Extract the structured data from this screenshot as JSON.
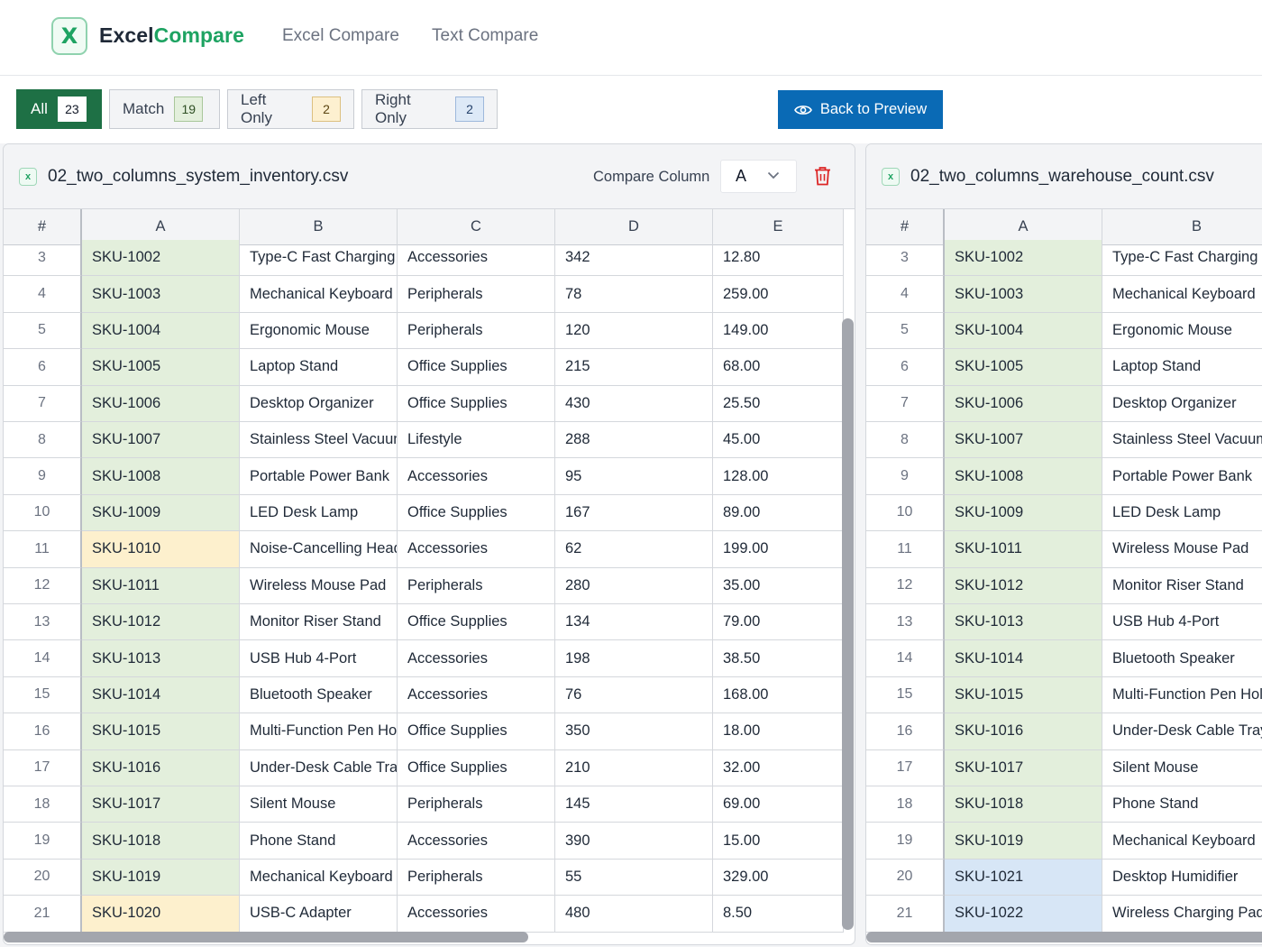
{
  "header": {
    "logo_letter": "X",
    "brand_part1": "Excel",
    "brand_part2": "Compare",
    "nav": [
      "Excel Compare",
      "Text Compare"
    ]
  },
  "filters": {
    "all_label": "All",
    "all_count": "23",
    "match_label": "Match",
    "match_count": "19",
    "left_label": "Left Only",
    "left_count": "2",
    "right_label": "Right Only",
    "right_count": "2",
    "back_label": "Back to Preview"
  },
  "colors": {
    "brand_green": "#1ea362",
    "active_filter": "#1e7045",
    "primary_button": "#0a6ab5",
    "match_bg": "#e3efdc",
    "left_only_bg": "#fdf0cd",
    "right_only_bg": "#d7e6f6",
    "delete_icon": "#dc2626"
  },
  "left_panel": {
    "file_icon": "excel-file-icon",
    "file_name": "02_two_columns_system_inventory.csv",
    "compare_label": "Compare Column",
    "compare_value": "A",
    "columns": [
      "#",
      "A",
      "B",
      "C",
      "D",
      "E"
    ],
    "rows": [
      {
        "n": "3",
        "status": "match",
        "cells": [
          "SKU-1002",
          "Type-C Fast Charging",
          "Accessories",
          "342",
          "12.80"
        ]
      },
      {
        "n": "4",
        "status": "match",
        "cells": [
          "SKU-1003",
          "Mechanical Keyboard",
          "Peripherals",
          "78",
          "259.00"
        ]
      },
      {
        "n": "5",
        "status": "match",
        "cells": [
          "SKU-1004",
          "Ergonomic Mouse",
          "Peripherals",
          "120",
          "149.00"
        ]
      },
      {
        "n": "6",
        "status": "match",
        "cells": [
          "SKU-1005",
          "Laptop Stand",
          "Office Supplies",
          "215",
          "68.00"
        ]
      },
      {
        "n": "7",
        "status": "match",
        "cells": [
          "SKU-1006",
          "Desktop Organizer",
          "Office Supplies",
          "430",
          "25.50"
        ]
      },
      {
        "n": "8",
        "status": "match",
        "cells": [
          "SKU-1007",
          "Stainless Steel Vacuum",
          "Lifestyle",
          "288",
          "45.00"
        ]
      },
      {
        "n": "9",
        "status": "match",
        "cells": [
          "SKU-1008",
          "Portable Power Bank",
          "Accessories",
          "95",
          "128.00"
        ]
      },
      {
        "n": "10",
        "status": "match",
        "cells": [
          "SKU-1009",
          "LED Desk Lamp",
          "Office Supplies",
          "167",
          "89.00"
        ]
      },
      {
        "n": "11",
        "status": "leftonly",
        "cells": [
          "SKU-1010",
          "Noise-Cancelling Headphones",
          "Accessories",
          "62",
          "199.00"
        ]
      },
      {
        "n": "12",
        "status": "match",
        "cells": [
          "SKU-1011",
          "Wireless Mouse Pad",
          "Peripherals",
          "280",
          "35.00"
        ]
      },
      {
        "n": "13",
        "status": "match",
        "cells": [
          "SKU-1012",
          "Monitor Riser Stand",
          "Office Supplies",
          "134",
          "79.00"
        ]
      },
      {
        "n": "14",
        "status": "match",
        "cells": [
          "SKU-1013",
          "USB Hub 4-Port",
          "Accessories",
          "198",
          "38.50"
        ]
      },
      {
        "n": "15",
        "status": "match",
        "cells": [
          "SKU-1014",
          "Bluetooth Speaker",
          "Accessories",
          "76",
          "168.00"
        ]
      },
      {
        "n": "16",
        "status": "match",
        "cells": [
          "SKU-1015",
          "Multi-Function Pen Holder",
          "Office Supplies",
          "350",
          "18.00"
        ]
      },
      {
        "n": "17",
        "status": "match",
        "cells": [
          "SKU-1016",
          "Under-Desk Cable Tray",
          "Office Supplies",
          "210",
          "32.00"
        ]
      },
      {
        "n": "18",
        "status": "match",
        "cells": [
          "SKU-1017",
          "Silent Mouse",
          "Peripherals",
          "145",
          "69.00"
        ]
      },
      {
        "n": "19",
        "status": "match",
        "cells": [
          "SKU-1018",
          "Phone Stand",
          "Accessories",
          "390",
          "15.00"
        ]
      },
      {
        "n": "20",
        "status": "match",
        "cells": [
          "SKU-1019",
          "Mechanical Keyboard",
          "Peripherals",
          "55",
          "329.00"
        ]
      },
      {
        "n": "21",
        "status": "leftonly",
        "cells": [
          "SKU-1020",
          "USB-C Adapter",
          "Accessories",
          "480",
          "8.50"
        ]
      }
    ]
  },
  "right_panel": {
    "file_icon": "excel-file-icon",
    "file_name": "02_two_columns_warehouse_count.csv",
    "columns": [
      "#",
      "A",
      "B"
    ],
    "rows": [
      {
        "n": "3",
        "status": "match",
        "cells": [
          "SKU-1002",
          "Type-C Fast Charging"
        ]
      },
      {
        "n": "4",
        "status": "match",
        "cells": [
          "SKU-1003",
          "Mechanical Keyboard"
        ]
      },
      {
        "n": "5",
        "status": "match",
        "cells": [
          "SKU-1004",
          "Ergonomic Mouse"
        ]
      },
      {
        "n": "6",
        "status": "match",
        "cells": [
          "SKU-1005",
          "Laptop Stand"
        ]
      },
      {
        "n": "7",
        "status": "match",
        "cells": [
          "SKU-1006",
          "Desktop Organizer"
        ]
      },
      {
        "n": "8",
        "status": "match",
        "cells": [
          "SKU-1007",
          "Stainless Steel Vacuum"
        ]
      },
      {
        "n": "9",
        "status": "match",
        "cells": [
          "SKU-1008",
          "Portable Power Bank"
        ]
      },
      {
        "n": "10",
        "status": "match",
        "cells": [
          "SKU-1009",
          "LED Desk Lamp"
        ]
      },
      {
        "n": "11",
        "status": "match",
        "cells": [
          "SKU-1011",
          "Wireless Mouse Pad"
        ]
      },
      {
        "n": "12",
        "status": "match",
        "cells": [
          "SKU-1012",
          "Monitor Riser Stand"
        ]
      },
      {
        "n": "13",
        "status": "match",
        "cells": [
          "SKU-1013",
          "USB Hub 4-Port"
        ]
      },
      {
        "n": "14",
        "status": "match",
        "cells": [
          "SKU-1014",
          "Bluetooth Speaker"
        ]
      },
      {
        "n": "15",
        "status": "match",
        "cells": [
          "SKU-1015",
          "Multi-Function Pen Holder"
        ]
      },
      {
        "n": "16",
        "status": "match",
        "cells": [
          "SKU-1016",
          "Under-Desk Cable Tray"
        ]
      },
      {
        "n": "17",
        "status": "match",
        "cells": [
          "SKU-1017",
          "Silent Mouse"
        ]
      },
      {
        "n": "18",
        "status": "match",
        "cells": [
          "SKU-1018",
          "Phone Stand"
        ]
      },
      {
        "n": "19",
        "status": "match",
        "cells": [
          "SKU-1019",
          "Mechanical Keyboard"
        ]
      },
      {
        "n": "20",
        "status": "rightonly",
        "cells": [
          "SKU-1021",
          "Desktop Humidifier"
        ]
      },
      {
        "n": "21",
        "status": "rightonly",
        "cells": [
          "SKU-1022",
          "Wireless Charging Pad"
        ]
      }
    ]
  }
}
